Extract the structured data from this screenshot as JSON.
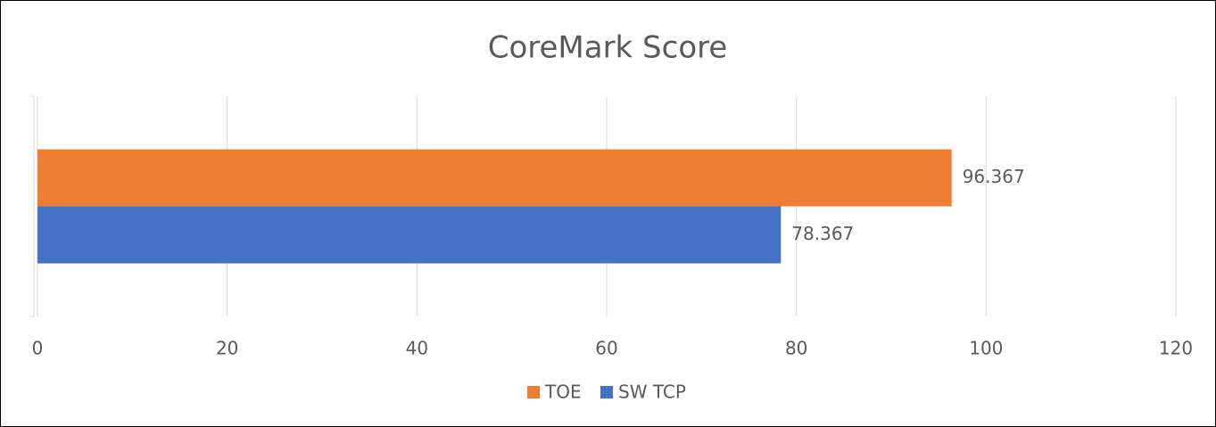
{
  "chart_data": {
    "type": "bar",
    "orientation": "horizontal",
    "title": "CoreMark Score",
    "categories": [
      null
    ],
    "series": [
      {
        "name": "TOE",
        "color": "#ed7d31",
        "values": [
          96.367
        ]
      },
      {
        "name": "SW TCP",
        "color": "#4472c4",
        "values": [
          78.367
        ]
      }
    ],
    "xlim": [
      0,
      120
    ],
    "xticks": [
      0,
      20,
      40,
      60,
      80,
      100,
      120
    ],
    "grid": true,
    "legend": "bottom"
  }
}
